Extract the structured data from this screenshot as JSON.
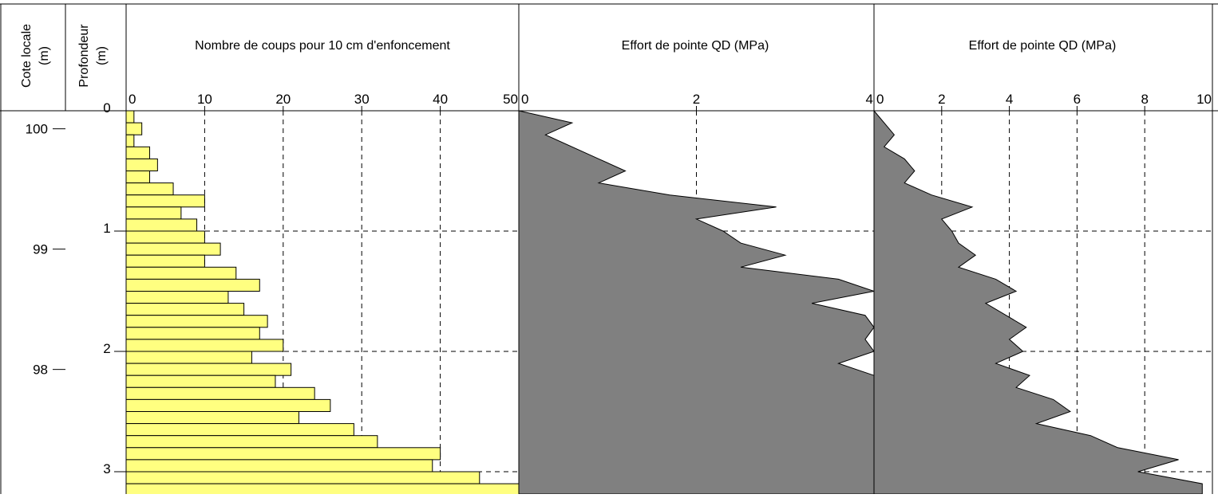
{
  "headers": {
    "cote_label": "Cote locale",
    "cote_unit": "(m)",
    "prof_label": "Profondeur",
    "prof_unit": "(m)",
    "panel1_title": "Nombre de coups pour 10 cm d'enfoncement",
    "panel2_title": "Effort de pointe QD (MPa)",
    "panel3_title": "Effort de pointe QD (MPa)"
  },
  "chart_data": [
    {
      "type": "axis",
      "name": "Cote locale",
      "ticks": [
        "100",
        "99",
        "98"
      ],
      "tick_values": [
        100,
        99,
        98
      ],
      "range": [
        100.15,
        96.8
      ]
    },
    {
      "type": "axis",
      "name": "Profondeur",
      "ticks": [
        "0",
        "1",
        "2",
        "3"
      ],
      "tick_values": [
        0,
        1,
        2,
        3
      ],
      "range": [
        0,
        3.1
      ]
    },
    {
      "type": "bar",
      "orientation": "horizontal",
      "title": "Nombre de coups pour 10 cm d'enfoncement",
      "xlim": [
        0,
        50
      ],
      "x_ticks": [
        "0",
        "10",
        "20",
        "30",
        "40",
        "50"
      ],
      "grid": true,
      "bar_color": "#ffff80",
      "depth_step": 0.1,
      "values": [
        1,
        2,
        1,
        3,
        4,
        3,
        6,
        10,
        7,
        9,
        10,
        12,
        10,
        14,
        17,
        13,
        15,
        18,
        17,
        20,
        16,
        21,
        19,
        24,
        26,
        22,
        29,
        32,
        40,
        39,
        45,
        50
      ]
    },
    {
      "type": "area",
      "title": "Effort de pointe QD (MPa)",
      "xlim": [
        0,
        4
      ],
      "x_ticks": [
        "0",
        "2",
        "4"
      ],
      "grid": true,
      "fill_color": "#808080",
      "depth": [
        0.0,
        0.1,
        0.2,
        0.4,
        0.5,
        0.6,
        0.7,
        0.8,
        0.9,
        1.0,
        1.1,
        1.2,
        1.3,
        1.4,
        1.5,
        1.6,
        1.7,
        1.8,
        1.9,
        2.0,
        2.1,
        2.2,
        2.3
      ],
      "qd": [
        0.0,
        0.6,
        0.3,
        0.9,
        1.2,
        0.9,
        1.7,
        2.9,
        2.0,
        2.3,
        2.5,
        3.0,
        2.5,
        3.6,
        4.2,
        3.3,
        3.9,
        4.2,
        3.9,
        4.2,
        3.6,
        4.2,
        4.2
      ]
    },
    {
      "type": "area",
      "title": "Effort de pointe QD (MPa)",
      "xlim": [
        0,
        10
      ],
      "x_ticks": [
        "0",
        "2",
        "4",
        "6",
        "8",
        "10"
      ],
      "grid": true,
      "fill_color": "#808080",
      "depth": [
        0.0,
        0.2,
        0.3,
        0.4,
        0.5,
        0.6,
        0.7,
        0.8,
        0.9,
        1.0,
        1.1,
        1.2,
        1.3,
        1.4,
        1.5,
        1.6,
        1.7,
        1.8,
        1.9,
        2.0,
        2.1,
        2.2,
        2.3,
        2.4,
        2.5,
        2.6,
        2.7,
        2.8,
        2.9,
        3.0,
        3.1
      ],
      "qd": [
        0.0,
        0.6,
        0.3,
        0.9,
        1.2,
        0.9,
        1.7,
        2.9,
        2.0,
        2.3,
        2.5,
        3.0,
        2.5,
        3.6,
        4.2,
        3.3,
        3.9,
        4.5,
        4.0,
        4.4,
        3.6,
        4.6,
        4.2,
        5.3,
        5.8,
        4.8,
        6.4,
        7.2,
        9.0,
        7.8,
        9.7
      ]
    }
  ]
}
